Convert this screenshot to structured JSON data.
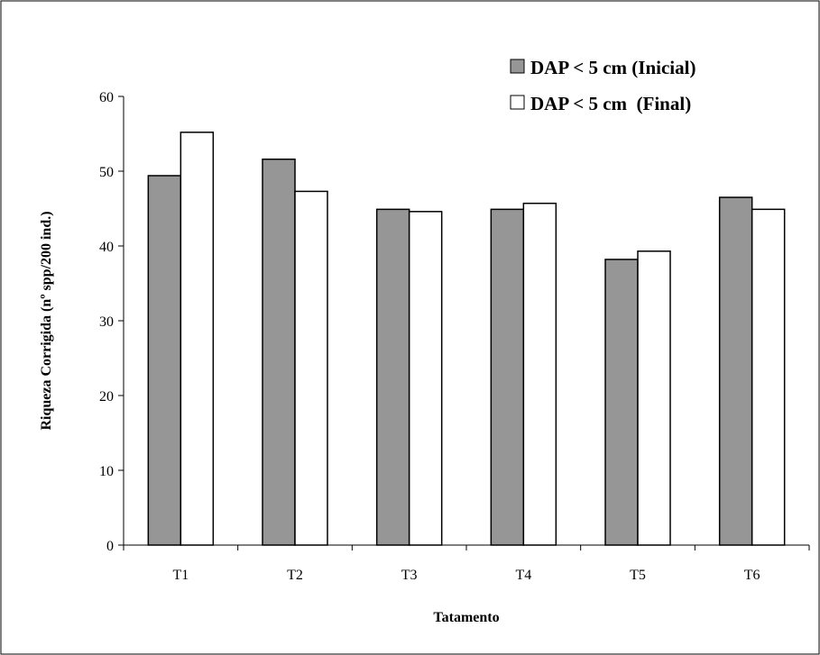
{
  "chart_data": {
    "type": "bar",
    "title": "",
    "xlabel": "Tatamento",
    "ylabel": "Riqueza Corrigida (nº spp/200 ind.)",
    "categories": [
      "T1",
      "T2",
      "T3",
      "T4",
      "T5",
      "T6"
    ],
    "ylim": [
      0,
      60
    ],
    "yticks": [
      0,
      10,
      20,
      30,
      40,
      50,
      60
    ],
    "grid": false,
    "legend_position": "top-right",
    "series": [
      {
        "name": "DAP < 5 cm (Inicial)",
        "values": [
          49.4,
          51.6,
          44.9,
          44.9,
          38.2,
          46.5
        ],
        "color": "#969696"
      },
      {
        "name": "DAP < 5 cm  (Final)",
        "values": [
          55.2,
          47.3,
          44.6,
          45.7,
          39.3,
          44.9
        ],
        "color": "#ffffff"
      }
    ]
  }
}
